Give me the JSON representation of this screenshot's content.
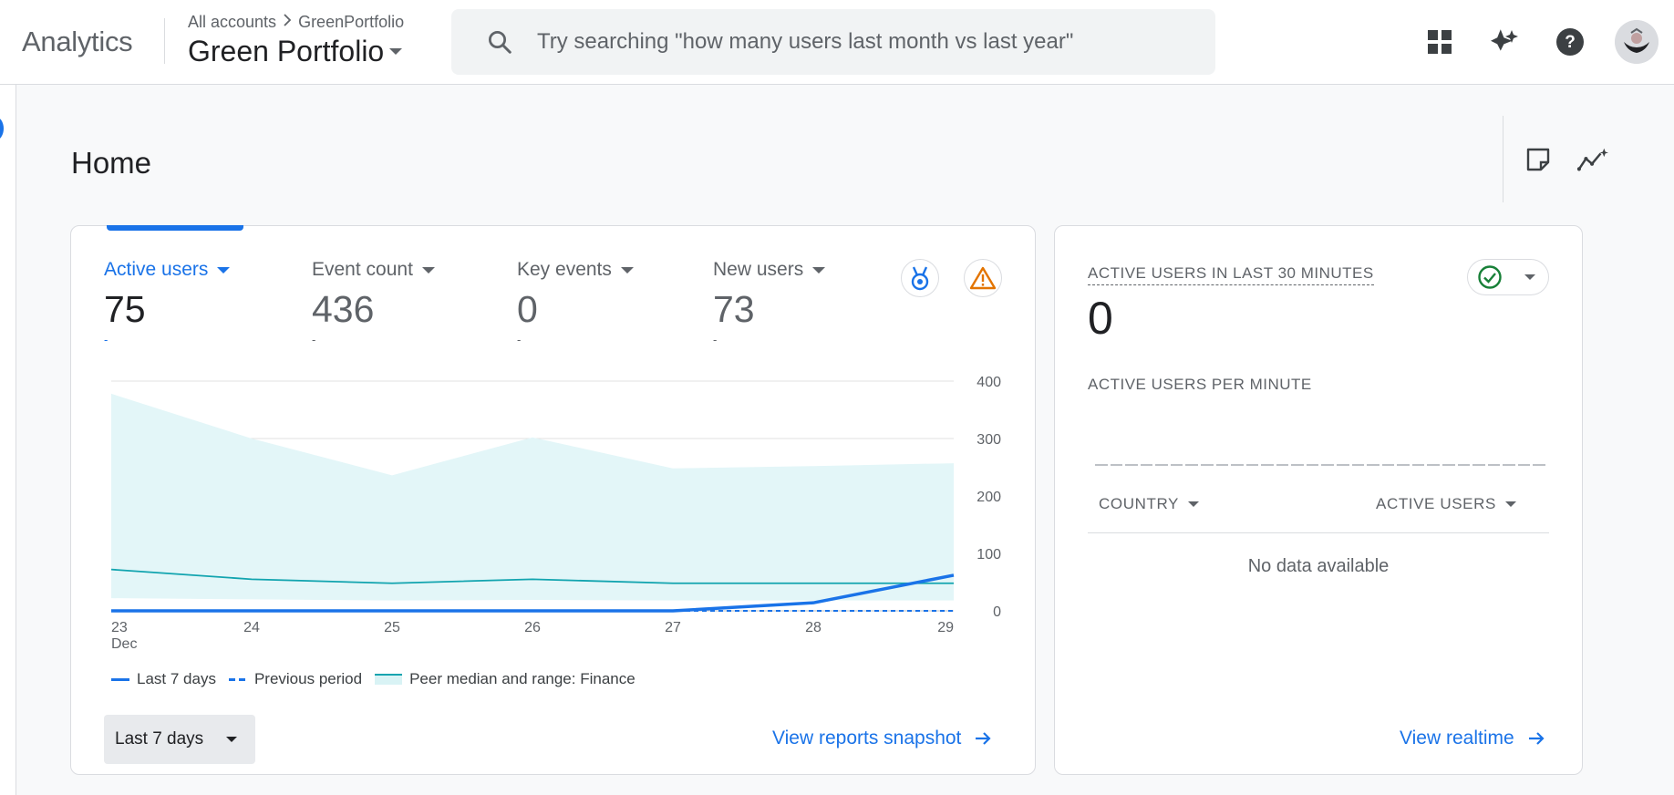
{
  "app": {
    "title": "Analytics"
  },
  "breadcrumb": {
    "accounts": "All accounts",
    "account": "GreenPortfolio"
  },
  "property": {
    "name": "Green Portfolio"
  },
  "search": {
    "placeholder": "Try searching \"how many users last month vs last year\""
  },
  "topbar_icons": [
    "apps-grid-icon",
    "sparkle-icon",
    "help-icon",
    "avatar"
  ],
  "page": {
    "title": "Home"
  },
  "metrics": [
    {
      "label": "Active users",
      "value": "75",
      "delta": "-",
      "active": true
    },
    {
      "label": "Event count",
      "value": "436",
      "delta": "-",
      "active": false
    },
    {
      "label": "Key events",
      "value": "0",
      "delta": "-",
      "active": false
    },
    {
      "label": "New users",
      "value": "73",
      "delta": "-",
      "active": false
    }
  ],
  "chart_data": {
    "type": "line",
    "categories": [
      "23",
      "24",
      "25",
      "26",
      "27",
      "28",
      "29"
    ],
    "x_sublabel": "Dec",
    "ylim": [
      0,
      400
    ],
    "yticks": [
      "400",
      "300",
      "200",
      "100",
      "0"
    ],
    "series": [
      {
        "name": "Last 7 days",
        "style": "solid",
        "values": [
          0,
          0,
          0,
          0,
          0,
          14,
          62
        ]
      },
      {
        "name": "Previous period",
        "style": "dashed",
        "values": [
          0,
          0,
          0,
          0,
          0,
          0,
          0
        ]
      },
      {
        "name": "Peer median and range: Finance",
        "style": "band",
        "median": [
          72,
          55,
          48,
          55,
          48,
          48,
          48
        ],
        "upper": [
          378,
          300,
          236,
          302,
          248,
          252,
          257
        ],
        "lower": [
          22,
          20,
          18,
          19,
          18,
          18,
          18
        ]
      }
    ]
  },
  "legend": {
    "last": "Last 7 days",
    "previous": "Previous period",
    "peer": "Peer median and range: Finance"
  },
  "range": {
    "label": "Last 7 days"
  },
  "links": {
    "snapshot": "View reports snapshot",
    "realtime": "View realtime"
  },
  "realtime": {
    "title": "ACTIVE USERS IN LAST 30 MINUTES",
    "value": "0",
    "per_minute": "ACTIVE USERS PER MINUTE",
    "col_country": "COUNTRY",
    "col_active": "ACTIVE USERS",
    "empty": "No data available"
  },
  "colors": {
    "accent": "#1a73e8",
    "peer": "#12a4af",
    "peer_fill": "#e3f6f8",
    "warning": "#e37400",
    "ok": "#188038"
  }
}
